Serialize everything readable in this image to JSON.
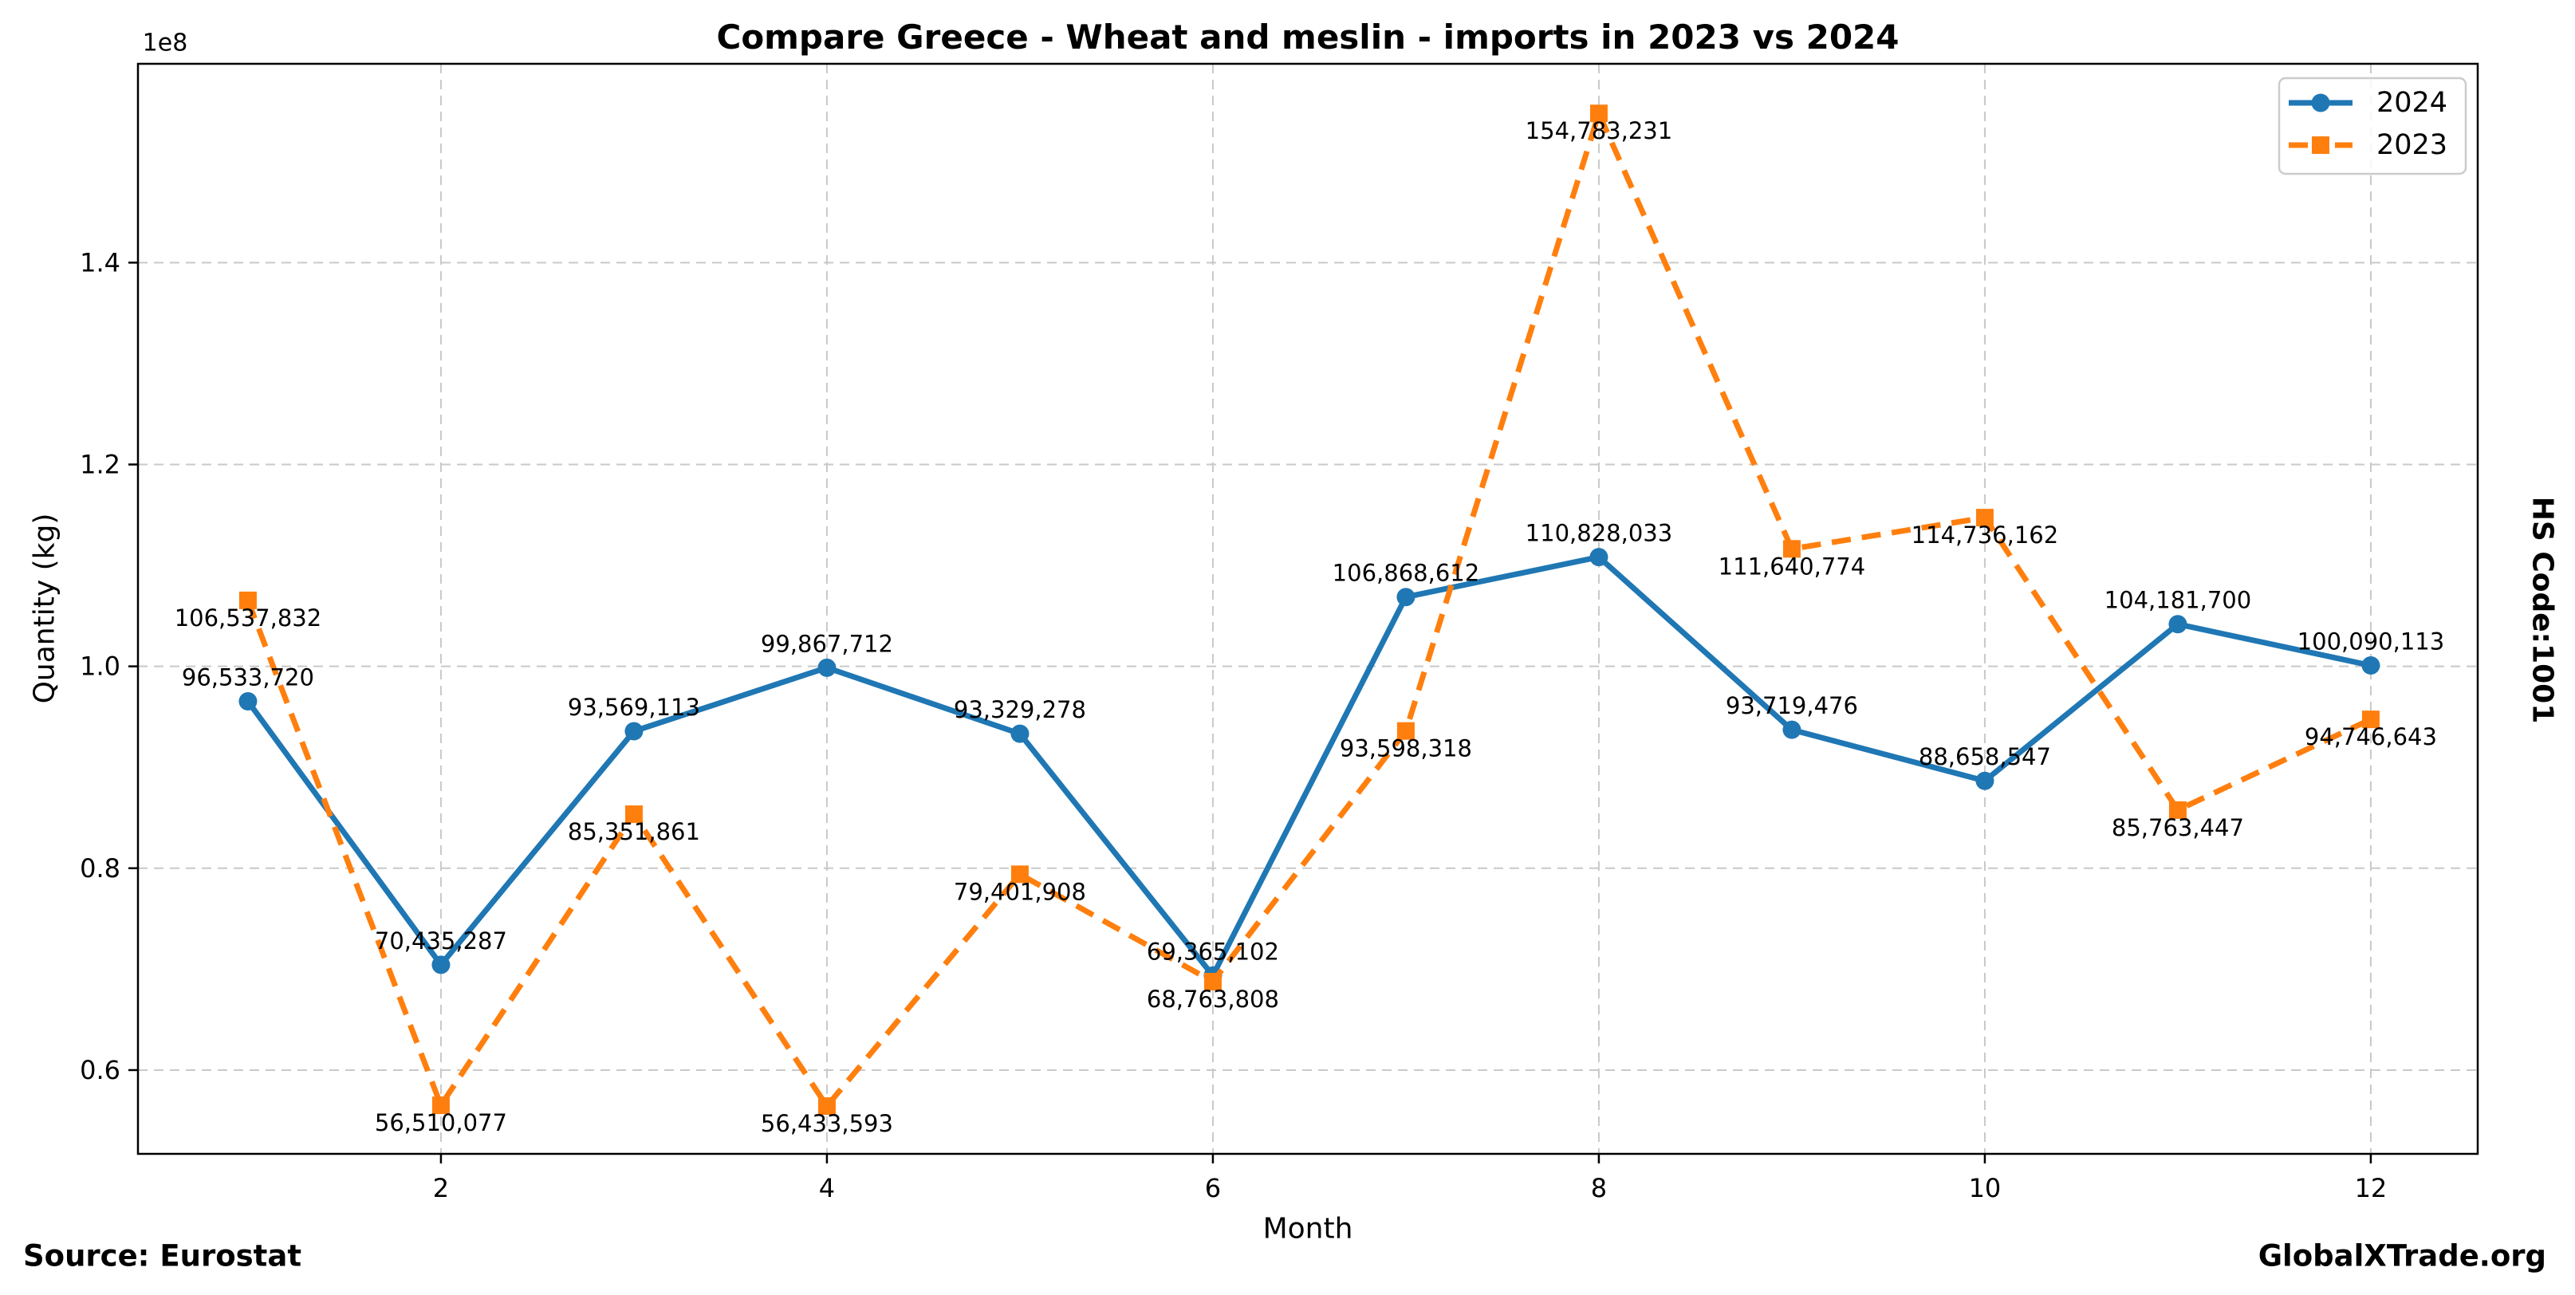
{
  "chart_data": {
    "type": "line",
    "title": "Compare Greece - Wheat and meslin - imports in 2023 vs 2024",
    "xlabel": "Month",
    "ylabel": "Quantity (kg)",
    "ylabel_right": "HS Code:1001",
    "y_scale_label": "1e8",
    "x": [
      1,
      2,
      3,
      4,
      5,
      6,
      7,
      8,
      9,
      10,
      11,
      12
    ],
    "xticks": [
      2,
      4,
      6,
      8,
      10,
      12
    ],
    "yticks": [
      "0.6",
      "0.8",
      "1.0",
      "1.2",
      "1.4"
    ],
    "xlim": [
      0.43,
      12.554
    ],
    "ylim": [
      51700000,
      159700000
    ],
    "grid": true,
    "legend_position": "upper right",
    "series": [
      {
        "name": "2024",
        "color": "#1f77b4",
        "linestyle": "solid",
        "marker": "circle",
        "values": [
          96533720,
          70435287,
          93569113,
          99867712,
          93329278,
          69365102,
          106868612,
          110828033,
          93719476,
          88658547,
          104181700,
          100090113
        ]
      },
      {
        "name": "2023",
        "color": "#ff7f0e",
        "linestyle": "dashed",
        "marker": "square",
        "values": [
          106537832,
          56510077,
          85351861,
          56433593,
          79401908,
          68763808,
          93598318,
          154783231,
          111640774,
          114736162,
          85763447,
          94746643
        ]
      }
    ]
  },
  "footer": {
    "source": "Source: Eurostat",
    "brand": "GlobalXTrade.org"
  }
}
